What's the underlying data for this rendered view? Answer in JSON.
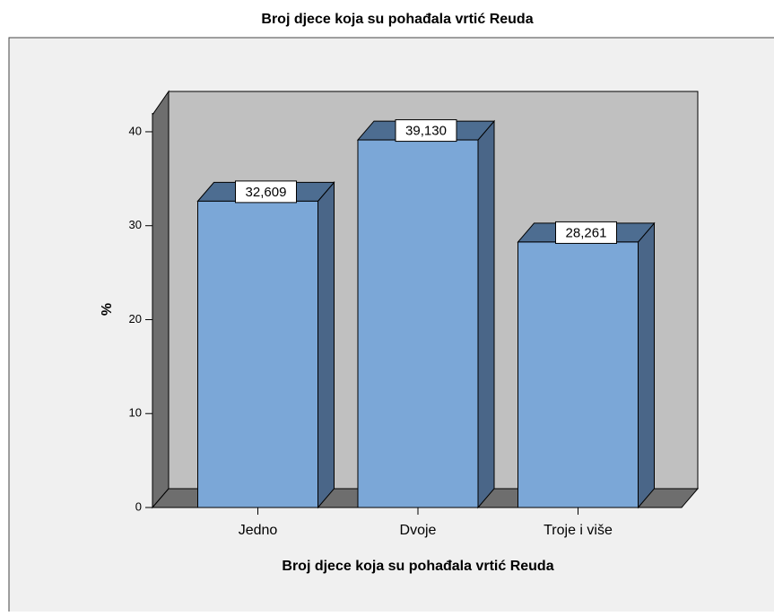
{
  "chart_data": {
    "type": "bar3d",
    "title": "Broj djece koja su pohađala vrtić Reuda",
    "x_label": "Broj djece koja su pohađala vrtić Reuda",
    "y_label": "%",
    "categories": [
      "Jedno",
      "Dvoje",
      "Troje i više"
    ],
    "values": [
      32.609,
      39.13,
      28.261
    ],
    "value_labels": [
      "32,609",
      "39,130",
      "28,261"
    ],
    "color": "#7ba7d7",
    "ylim": [
      0,
      42
    ],
    "yticks": [
      0,
      10,
      20,
      30,
      40
    ]
  }
}
